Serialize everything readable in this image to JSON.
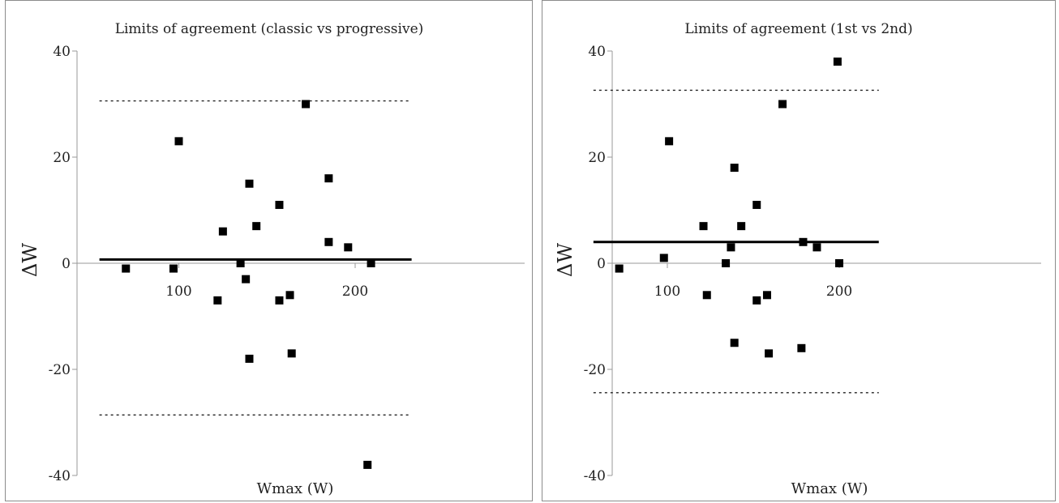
{
  "chart_data": [
    {
      "type": "scatter",
      "title": "Limits of agreement (classic vs progressive)",
      "xlabel": "Wmax (W)",
      "ylabel": "ΔW",
      "xlim": [
        0,
        250
      ],
      "ylim": [
        -40,
        40
      ],
      "y_ticks": [
        40,
        20,
        0,
        -20,
        -40
      ],
      "x_ticks": [
        100,
        200
      ],
      "mean_diff": 0.7,
      "upper_loa": 30.6,
      "lower_loa": -28.6,
      "line_x_range": [
        55,
        232
      ],
      "points": [
        {
          "x": 70,
          "y": -1
        },
        {
          "x": 97,
          "y": -1
        },
        {
          "x": 100,
          "y": 23
        },
        {
          "x": 122,
          "y": -7
        },
        {
          "x": 125,
          "y": 6
        },
        {
          "x": 135,
          "y": 0
        },
        {
          "x": 138,
          "y": -3
        },
        {
          "x": 140,
          "y": 15
        },
        {
          "x": 140,
          "y": -18
        },
        {
          "x": 144,
          "y": 7
        },
        {
          "x": 157,
          "y": 11
        },
        {
          "x": 157,
          "y": -7
        },
        {
          "x": 163,
          "y": -6
        },
        {
          "x": 164,
          "y": -17
        },
        {
          "x": 172,
          "y": 30
        },
        {
          "x": 185,
          "y": 16
        },
        {
          "x": 185,
          "y": 4
        },
        {
          "x": 196,
          "y": 3
        },
        {
          "x": 209,
          "y": 0
        },
        {
          "x": 207,
          "y": -38
        }
      ]
    },
    {
      "type": "scatter",
      "title": "Limits of agreement (1st vs 2nd)",
      "xlabel": "Wmax (W)",
      "ylabel": "ΔW",
      "xlim": [
        0,
        250
      ],
      "ylim": [
        -40,
        40
      ],
      "y_ticks": [
        40,
        20,
        0,
        -20,
        -40
      ],
      "x_ticks": [
        100,
        200
      ],
      "mean_diff": 4,
      "upper_loa": 32.6,
      "lower_loa": -24.4,
      "line_x_range": [
        57,
        223
      ],
      "points": [
        {
          "x": 72,
          "y": -1
        },
        {
          "x": 98,
          "y": 1
        },
        {
          "x": 101,
          "y": 23
        },
        {
          "x": 121,
          "y": 7
        },
        {
          "x": 123,
          "y": -6
        },
        {
          "x": 134,
          "y": 0
        },
        {
          "x": 137,
          "y": 3
        },
        {
          "x": 139,
          "y": 18
        },
        {
          "x": 139,
          "y": -15
        },
        {
          "x": 143,
          "y": 7
        },
        {
          "x": 152,
          "y": 11
        },
        {
          "x": 152,
          "y": -7
        },
        {
          "x": 158,
          "y": -6
        },
        {
          "x": 159,
          "y": -17
        },
        {
          "x": 167,
          "y": 30
        },
        {
          "x": 178,
          "y": -16
        },
        {
          "x": 179,
          "y": 4
        },
        {
          "x": 187,
          "y": 3
        },
        {
          "x": 199,
          "y": 38
        },
        {
          "x": 200,
          "y": 0
        }
      ]
    }
  ]
}
